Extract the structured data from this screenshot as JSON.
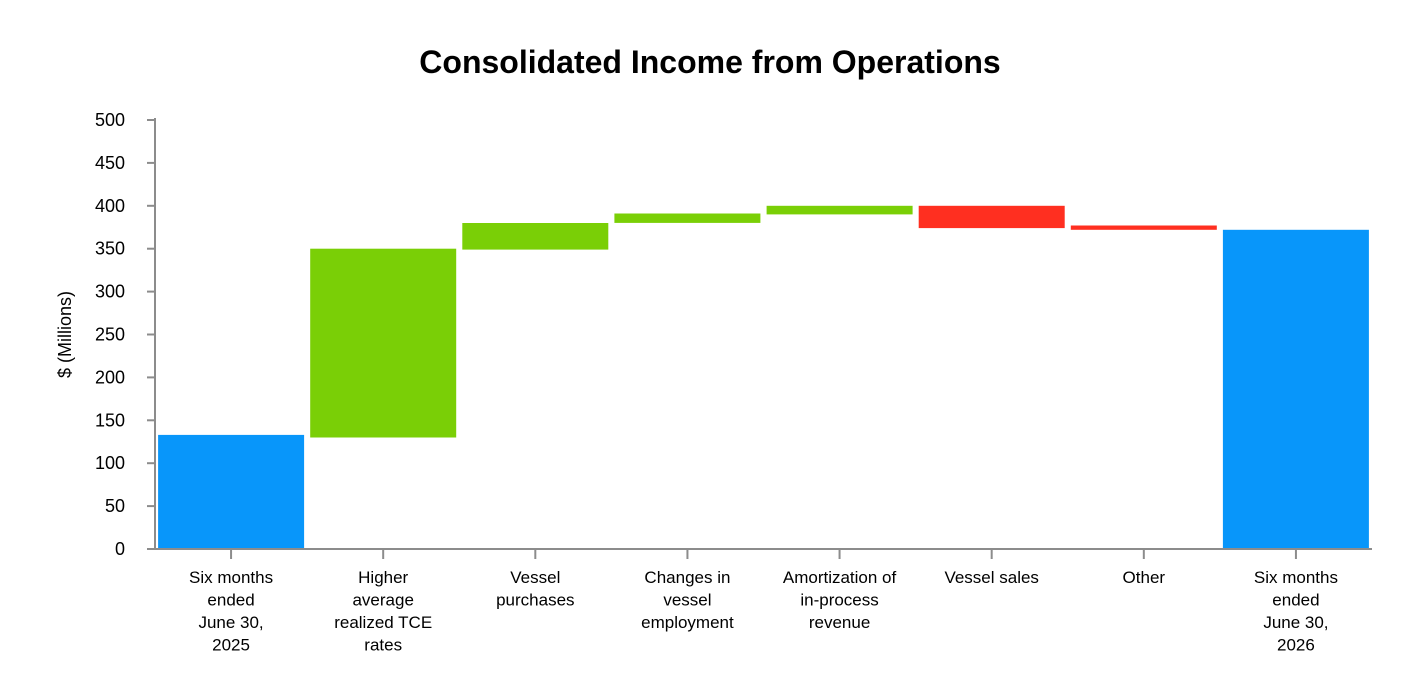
{
  "chart_data": {
    "type": "bar",
    "subtype": "waterfall",
    "title": "Consolidated Income from Operations",
    "xlabel": "",
    "ylabel": "$ (Millions)",
    "ylim": [
      0,
      500
    ],
    "yticks": [
      0,
      50,
      100,
      150,
      200,
      250,
      300,
      350,
      400,
      450,
      500
    ],
    "grid": false,
    "legend": "none",
    "categories": [
      [
        "Six months",
        "ended",
        "June 30,",
        "2025"
      ],
      [
        "Higher",
        "average",
        "realized TCE",
        "rates"
      ],
      [
        "Vessel",
        "purchases"
      ],
      [
        "Changes in",
        "vessel",
        "employment"
      ],
      [
        "Amortization of",
        "in-process",
        "revenue"
      ],
      [
        "Vessel sales"
      ],
      [
        "Other"
      ],
      [
        "Six months",
        "ended",
        "June 30,",
        "2026"
      ]
    ],
    "bars": [
      {
        "kind": "total",
        "start": 0,
        "end": 133
      },
      {
        "kind": "increase",
        "start": 130,
        "end": 350
      },
      {
        "kind": "increase",
        "start": 349,
        "end": 380
      },
      {
        "kind": "increase",
        "start": 380,
        "end": 391
      },
      {
        "kind": "increase",
        "start": 390,
        "end": 400
      },
      {
        "kind": "decrease",
        "start": 400,
        "end": 374
      },
      {
        "kind": "decrease",
        "start": 377,
        "end": 372
      },
      {
        "kind": "total",
        "start": 0,
        "end": 372
      }
    ],
    "colors": {
      "total": "#0896fa",
      "increase": "#7acf06",
      "decrease": "#ff2f20",
      "axis": "#8c8c8c"
    }
  }
}
